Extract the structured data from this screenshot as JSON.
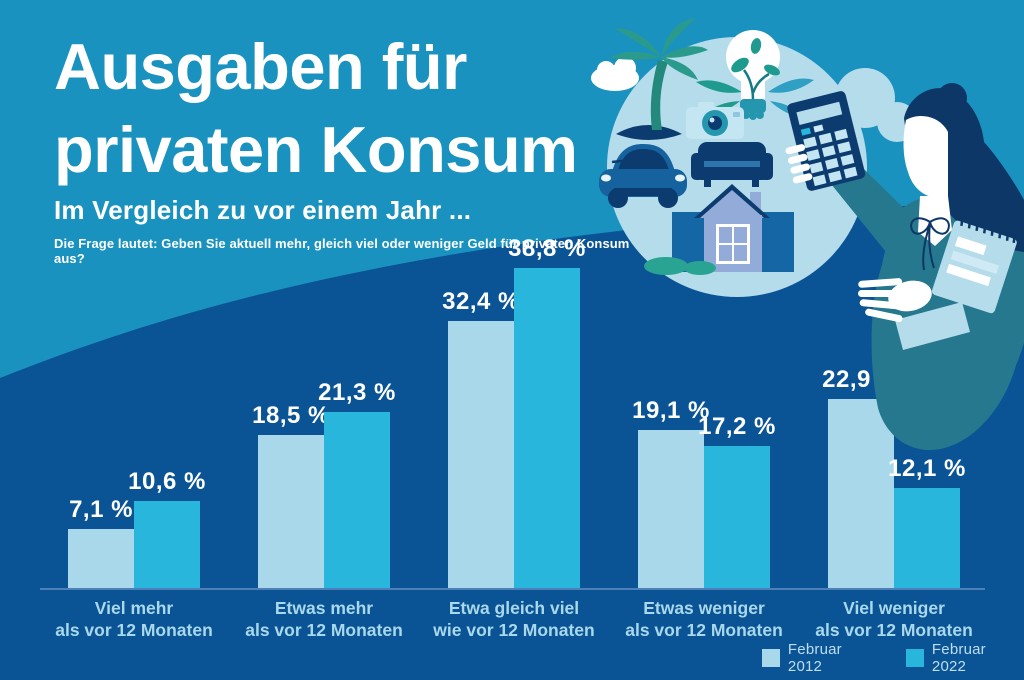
{
  "header": {
    "title_line1": "Ausgaben für",
    "title_line2": "privaten Konsum",
    "subtitle": "Im Vergleich zu vor einem Jahr ...",
    "question": "Die Frage lautet: Geben Sie aktuell mehr, gleich viel oder weniger Geld für privaten Konsum aus?"
  },
  "chart_data": {
    "type": "bar",
    "categories": [
      {
        "line1": "Viel mehr",
        "line2": "als vor 12 Monaten"
      },
      {
        "line1": "Etwas mehr",
        "line2": "als vor 12 Monaten"
      },
      {
        "line1": "Etwa gleich viel",
        "line2": "wie vor 12 Monaten"
      },
      {
        "line1": "Etwas weniger",
        "line2": "als vor 12 Monaten"
      },
      {
        "line1": "Viel weniger",
        "line2": "als vor 12 Monaten"
      }
    ],
    "series": [
      {
        "name": "Februar 2012",
        "color": "#A9D8EB",
        "values": [
          7.1,
          18.5,
          32.4,
          19.1,
          22.9
        ],
        "labels": [
          "7,1 %",
          "18,5 %",
          "32,4 %",
          "19,1 %",
          "22,9 %"
        ]
      },
      {
        "name": "Februar 2022",
        "color": "#29B6DC",
        "values": [
          10.6,
          21.3,
          38.8,
          17.2,
          12.1
        ],
        "labels": [
          "10,6 %",
          "21,3 %",
          "38,8 %",
          "17,2 %",
          "12,1 %"
        ]
      }
    ],
    "unit": "%",
    "ylim": [
      0,
      40
    ],
    "grid": false,
    "legend_position": "bottom-right"
  },
  "legend": {
    "items": [
      {
        "label": "Februar 2012",
        "color": "#A9D8EB"
      },
      {
        "label": "Februar 2022",
        "color": "#29B6DC"
      }
    ]
  },
  "colors": {
    "bg_top": "#1A92BF",
    "bg_bottom": "#0A5496",
    "axis": "#4D80B6",
    "category_label": "#A9D8EB",
    "value_label": "#FFFFFF",
    "accent_light_bar": "#A9D8EB",
    "accent_cyan_bar": "#29B6DC",
    "illustration_navy": "#0C3C6F",
    "illustration_teal": "#2A9A8C",
    "illustration_circle": "#B5DCEB",
    "illustration_sweater": "#26788F",
    "illustration_house": "#93ABD9",
    "illustration_mid_blue": "#1566A4"
  },
  "illustration": {
    "description": "Kreis-Illustration mit Palme, Glühbirne mit Pflanze, Kamera, Sofa, Auto und Haus; daneben Frau mit Taschenrechner und Notizblock"
  }
}
